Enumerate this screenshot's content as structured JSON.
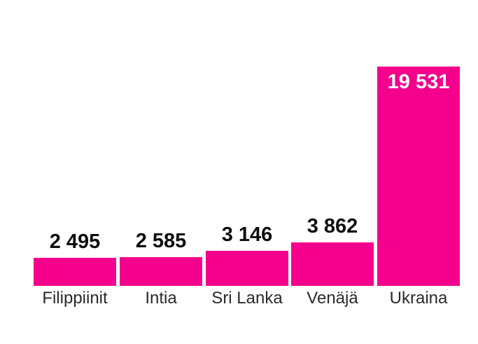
{
  "chart_data": {
    "type": "bar",
    "categories": [
      "Filippiinit",
      "Intia",
      "Sri Lanka",
      "Venäjä",
      "Ukraina"
    ],
    "values": [
      2495,
      2585,
      3146,
      3862,
      19531
    ],
    "value_labels": [
      "2 495",
      "2 585",
      "3 146",
      "3 862",
      "19 531"
    ],
    "title": "",
    "xlabel": "",
    "ylabel": "",
    "ylim": [
      0,
      19531
    ],
    "grid": false,
    "legend": "none",
    "colors": {
      "bar": "#f4008c",
      "value_label_outside": "#0d0d0d",
      "value_label_inside": "#ffffff",
      "category_label": "#2a2a2a",
      "background": "#ffffff"
    }
  }
}
